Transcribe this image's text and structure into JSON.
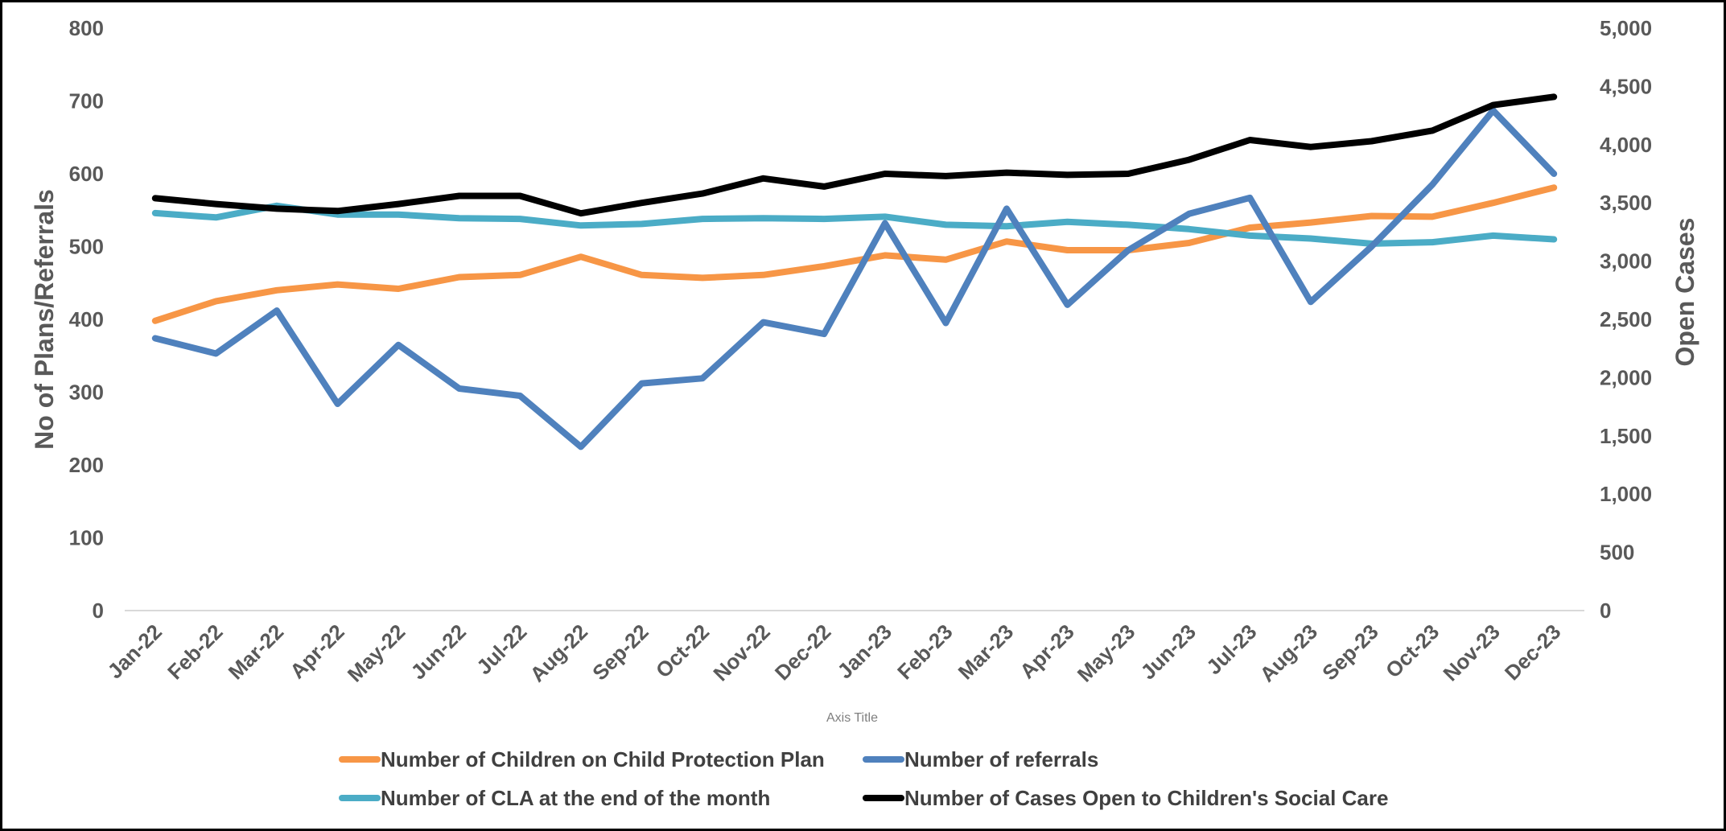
{
  "chart_data": {
    "type": "line",
    "categories": [
      "Jan-22",
      "Feb-22",
      "Mar-22",
      "Apr-22",
      "May-22",
      "Jun-22",
      "Jul-22",
      "Aug-22",
      "Sep-22",
      "Oct-22",
      "Nov-22",
      "Dec-22",
      "Jan-23",
      "Feb-23",
      "Mar-23",
      "Apr-23",
      "May-23",
      "Jun-23",
      "Jul-23",
      "Aug-23",
      "Sep-23",
      "Oct-23",
      "Nov-23",
      "Dec-23"
    ],
    "xlabel": "Axis Title",
    "ylabel": "No of Plans/Referrals",
    "y2label": "Open Cases",
    "ylim": [
      0,
      800
    ],
    "y2lim": [
      0,
      5000
    ],
    "yticks": [
      "0",
      "100",
      "200",
      "300",
      "400",
      "500",
      "600",
      "700",
      "800"
    ],
    "y2ticks": [
      "0",
      "500",
      "1,000",
      "1,500",
      "2,000",
      "2,500",
      "3,000",
      "3,500",
      "4,000",
      "4,500",
      "5,000"
    ],
    "grid": false,
    "legend_position": "bottom",
    "series": [
      {
        "name": "Number of Children on Child Protection Plan",
        "axis": "left",
        "color": "#F79646",
        "values": [
          398,
          425,
          440,
          448,
          442,
          458,
          461,
          486,
          461,
          457,
          461,
          473,
          488,
          482,
          507,
          495,
          495,
          505,
          526,
          533,
          542,
          541,
          560,
          581
        ]
      },
      {
        "name": "Number of referrals",
        "axis": "left",
        "color": "#4F81BD",
        "values": [
          374,
          353,
          412,
          284,
          365,
          305,
          295,
          225,
          312,
          319,
          396,
          380,
          532,
          395,
          552,
          420,
          495,
          545,
          567,
          424,
          500,
          585,
          687,
          600
        ]
      },
      {
        "name": "Number of CLA at the end of the month",
        "axis": "left",
        "color": "#4BACC6",
        "values": [
          546,
          540,
          556,
          544,
          544,
          539,
          538,
          529,
          531,
          538,
          539,
          538,
          541,
          530,
          528,
          534,
          530,
          524,
          515,
          511,
          504,
          506,
          515,
          510
        ]
      },
      {
        "name": "Number of Cases Open to Children's Social Care",
        "axis": "right",
        "color": "#000000",
        "values": [
          3540,
          3490,
          3450,
          3430,
          3490,
          3560,
          3560,
          3410,
          3500,
          3580,
          3710,
          3640,
          3750,
          3730,
          3760,
          3740,
          3750,
          3870,
          4040,
          3980,
          4030,
          4120,
          4340,
          4410
        ]
      }
    ]
  }
}
